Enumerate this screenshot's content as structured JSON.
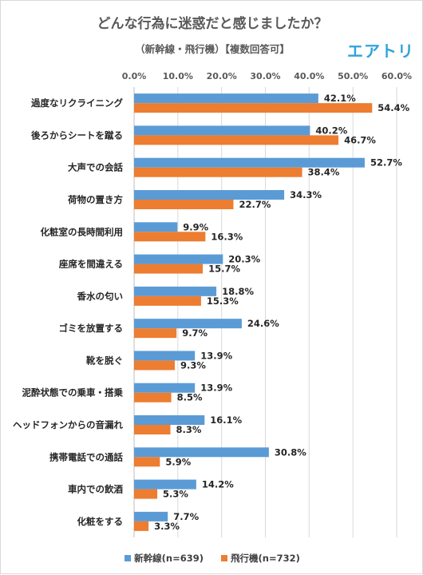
{
  "title": "どんな行為に迷惑だと感じましたか？",
  "subtitle": "（新幹線・飛行機）【複数回答可】",
  "brand": "エアトリ",
  "chart_data": {
    "type": "bar",
    "orientation": "horizontal",
    "title": "どんな行為に迷惑だと感じましたか？",
    "subtitle": "（新幹線・飛行機）【複数回答可】",
    "xlim": [
      0,
      60
    ],
    "x_ticks": [
      "0.0%",
      "10.0%",
      "20.0%",
      "30.0%",
      "40.0%",
      "50.0%",
      "60.0%"
    ],
    "grid": true,
    "legend_position": "bottom",
    "categories": [
      "過度なリクライニング",
      "後ろからシートを蹴る",
      "大声での会話",
      "荷物の置き方",
      "化粧室の長時間利用",
      "座席を間違える",
      "香水の匂い",
      "ゴミを放置する",
      "靴を脱ぐ",
      "泥酔状態での乗車・搭乗",
      "ヘッドフォンからの音漏れ",
      "携帯電話での通話",
      "車内での飲酒",
      "化粧をする"
    ],
    "series": [
      {
        "name": "新幹線(n=639)",
        "color": "#5b9bd5",
        "values": [
          42.1,
          40.2,
          52.7,
          34.3,
          9.9,
          20.3,
          18.8,
          24.6,
          13.9,
          13.9,
          16.1,
          30.8,
          14.2,
          7.7
        ],
        "labels": [
          "42.1%",
          "40.2%",
          "52.7%",
          "34.3%",
          "9.9%",
          "20.3%",
          "18.8%",
          "24.6%",
          "13.9%",
          "13.9%",
          "16.1%",
          "30.8%",
          "14.2%",
          "7.7%"
        ]
      },
      {
        "name": "飛行機(n=732)",
        "color": "#ed7d31",
        "values": [
          54.4,
          46.7,
          38.4,
          22.7,
          16.3,
          15.7,
          15.3,
          9.7,
          9.3,
          8.5,
          8.3,
          5.9,
          5.3,
          3.3
        ],
        "labels": [
          "54.4%",
          "46.7%",
          "38.4%",
          "22.7%",
          "16.3%",
          "15.7%",
          "15.3%",
          "9.7%",
          "9.3%",
          "8.5%",
          "8.3%",
          "5.9%",
          "5.3%",
          "3.3%"
        ]
      }
    ]
  }
}
